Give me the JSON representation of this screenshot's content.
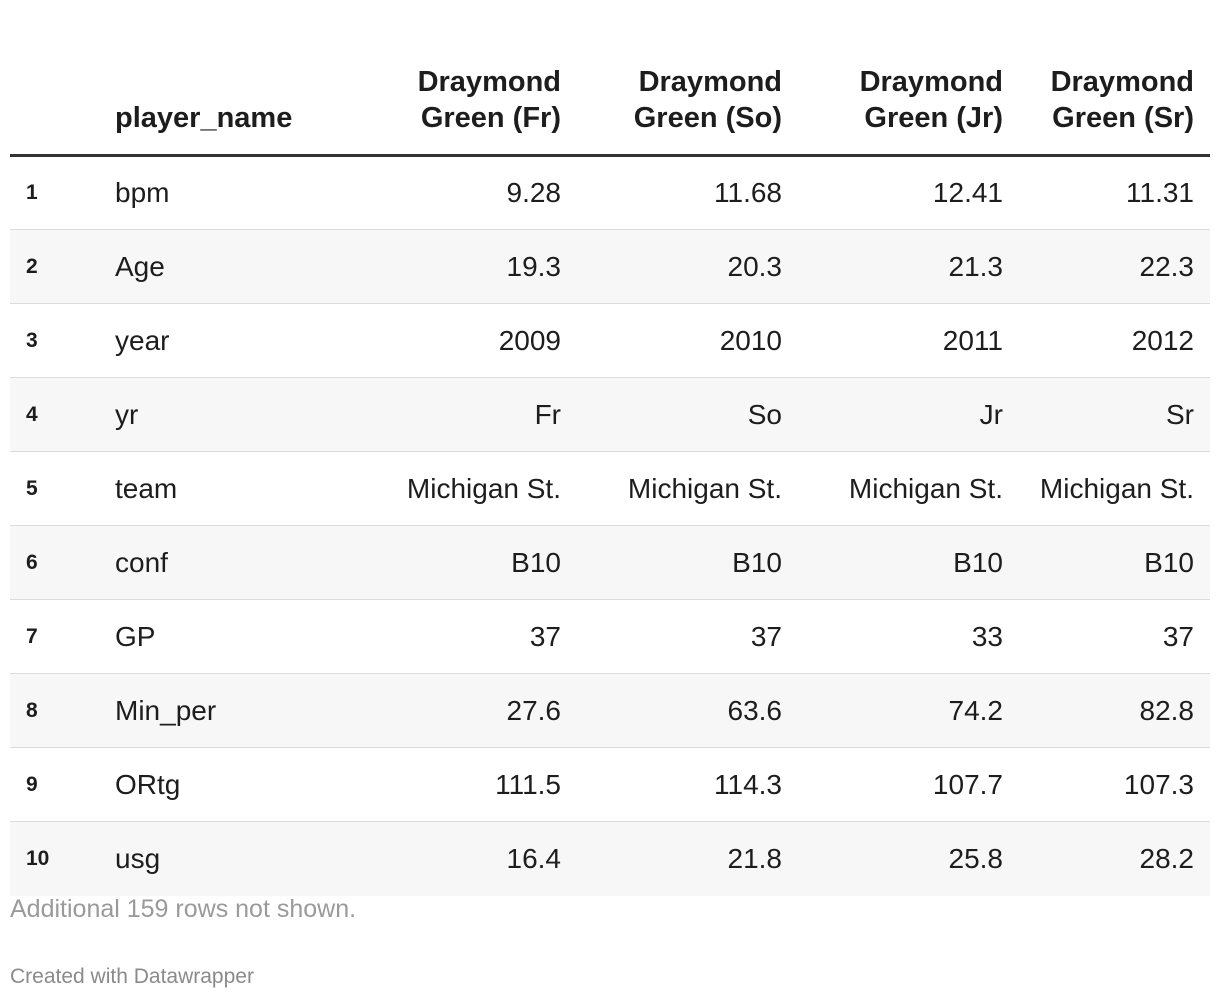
{
  "chart_data": {
    "type": "table",
    "columns": [
      "",
      "player_name",
      "Draymond Green (Fr)",
      "Draymond Green (So)",
      "Draymond Green (Jr)",
      "Draymond Green (Sr)"
    ],
    "rows": [
      {
        "index": "1",
        "name": "bpm",
        "values": [
          "9.28",
          "11.68",
          "12.41",
          "11.31"
        ]
      },
      {
        "index": "2",
        "name": "Age",
        "values": [
          "19.3",
          "20.3",
          "21.3",
          "22.3"
        ]
      },
      {
        "index": "3",
        "name": "year",
        "values": [
          "2009",
          "2010",
          "2011",
          "2012"
        ]
      },
      {
        "index": "4",
        "name": "yr",
        "values": [
          "Fr",
          "So",
          "Jr",
          "Sr"
        ]
      },
      {
        "index": "5",
        "name": "team",
        "values": [
          "Michigan St.",
          "Michigan St.",
          "Michigan St.",
          "Michigan St."
        ]
      },
      {
        "index": "6",
        "name": "conf",
        "values": [
          "B10",
          "B10",
          "B10",
          "B10"
        ]
      },
      {
        "index": "7",
        "name": "GP",
        "values": [
          "37",
          "37",
          "33",
          "37"
        ]
      },
      {
        "index": "8",
        "name": "Min_per",
        "values": [
          "27.6",
          "63.6",
          "74.2",
          "82.8"
        ]
      },
      {
        "index": "9",
        "name": "ORtg",
        "values": [
          "111.5",
          "114.3",
          "107.7",
          "107.3"
        ]
      },
      {
        "index": "10",
        "name": "usg",
        "values": [
          "16.4",
          "21.8",
          "25.8",
          "28.2"
        ]
      }
    ],
    "note": "Additional 159 rows not shown.",
    "credit": "Created with Datawrapper",
    "colors": {
      "text": "#1d1d1d",
      "stripe": "#f7f7f7",
      "header_rule": "#333333",
      "row_rule": "#dcdcdc",
      "note": "#9a9a9a"
    }
  }
}
